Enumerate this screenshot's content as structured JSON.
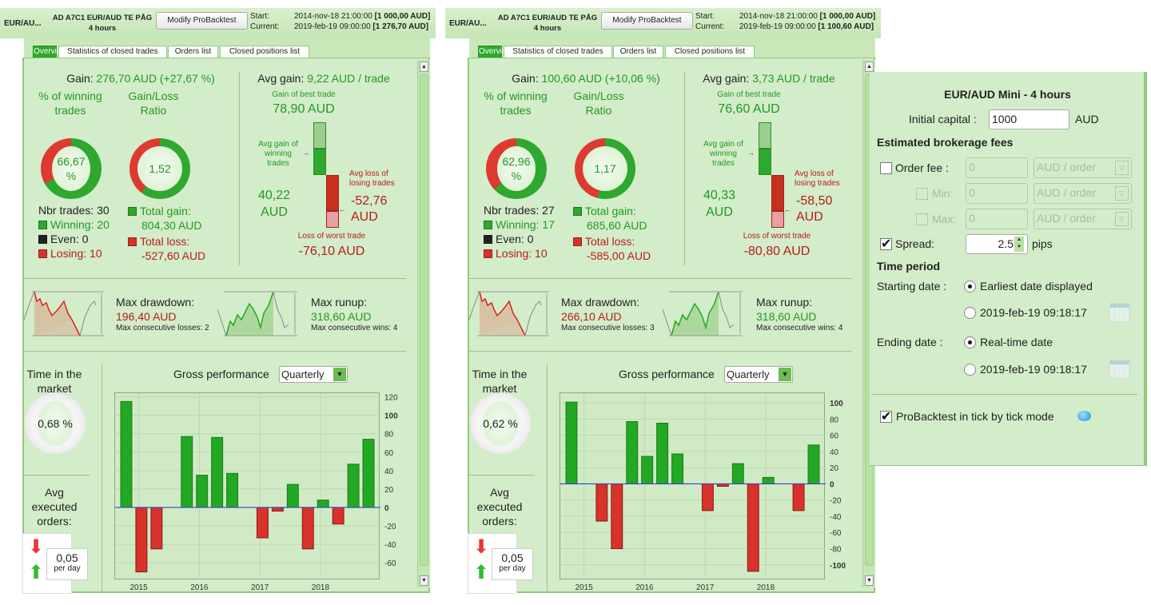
{
  "panels": [
    {
      "symbol": "EUR/AU...",
      "system_name": "AD A7C1 EUR/AUD TE PÅG",
      "timeframe": "4 hours",
      "modify_button": "Modify ProBacktest",
      "start_label": "Start:",
      "start_value": "2014-nov-18 21:00:00",
      "start_capital": "[1 000,00 AUD]",
      "current_label": "Current:",
      "current_value": "2019-feb-19 09:00:00",
      "current_capital": "[1 276,70 AUD]",
      "tabs": [
        "Overview",
        "Statistics of closed trades",
        "Orders list",
        "Closed positions list"
      ],
      "gain_label": "Gain:",
      "gain_value": "276,70 AUD (+27,67 %)",
      "pct_winning_title": "% of winning trades",
      "pct_winning_value": "66,67 %",
      "pct_winning_fraction": 0.6667,
      "gain_loss_title": "Gain/Loss Ratio",
      "gain_loss_value": "1,52",
      "gain_loss_fraction": 0.604,
      "nbr_trades": "Nbr trades: 30",
      "winning": "Winning: 20",
      "even": "Even: 0",
      "losing": "Losing: 10",
      "total_gain_label": "Total gain:",
      "total_gain_value": "804,30 AUD",
      "total_loss_label": "Total loss:",
      "total_loss_value": "-527,60 AUD",
      "avg_gain_label": "Avg gain:",
      "avg_gain_value": "9,22 AUD / trade",
      "best_trade_label": "Gain of best trade",
      "best_trade_value": "78,90 AUD",
      "avg_gain_winning_label": "Avg gain of winning trades",
      "avg_gain_winning_value": "40,22 AUD",
      "avg_loss_losing_label": "Avg loss of losing trades",
      "avg_loss_losing_value": "-52,76 AUD",
      "worst_trade_label": "Loss of worst trade",
      "worst_trade_value": "-76,10 AUD",
      "max_drawdown_label": "Max drawdown:",
      "max_drawdown_value": "196,40 AUD",
      "max_consec_losses": "Max consecutive losses: 2",
      "max_runup_label": "Max runup:",
      "max_runup_value": "318,60 AUD",
      "max_consec_wins": "Max consecutive wins: 4",
      "time_in_market_label": "Time in the market",
      "time_in_market_value": "0,68 %",
      "avg_orders_label": "Avg executed orders:",
      "avg_orders_value": "0,05",
      "avg_orders_unit": "per day",
      "gross_perf_label": "Gross performance",
      "period_select": "Quarterly"
    },
    {
      "symbol": "EUR/AU...",
      "system_name": "AD A7C1 EUR/AUD TE PÅG",
      "timeframe": "4 hours",
      "modify_button": "Modify ProBacktest",
      "start_label": "Start:",
      "start_value": "2014-nov-18 21:00:00",
      "start_capital": "[1 000,00 AUD]",
      "current_label": "Current:",
      "current_value": "2019-feb-19 09:00:00",
      "current_capital": "[1 100,60 AUD]",
      "tabs": [
        "Overview",
        "Statistics of closed trades",
        "Orders list",
        "Closed positions list"
      ],
      "gain_label": "Gain:",
      "gain_value": "100,60 AUD (+10,06 %)",
      "pct_winning_title": "% of winning trades",
      "pct_winning_value": "62,96 %",
      "pct_winning_fraction": 0.6296,
      "gain_loss_title": "Gain/Loss Ratio",
      "gain_loss_value": "1,17",
      "gain_loss_fraction": 0.54,
      "nbr_trades": "Nbr trades: 27",
      "winning": "Winning: 17",
      "even": "Even: 0",
      "losing": "Losing: 10",
      "total_gain_label": "Total gain:",
      "total_gain_value": "685,60 AUD",
      "total_loss_label": "Total loss:",
      "total_loss_value": "-585,00 AUD",
      "avg_gain_label": "Avg gain:",
      "avg_gain_value": "3,73 AUD / trade",
      "best_trade_label": "Gain of best trade",
      "best_trade_value": "76,60 AUD",
      "avg_gain_winning_label": "Avg gain of winning trades",
      "avg_gain_winning_value": "40,33 AUD",
      "avg_loss_losing_label": "Avg loss of losing trades",
      "avg_loss_losing_value": "-58,50 AUD",
      "worst_trade_label": "Loss of worst trade",
      "worst_trade_value": "-80,80 AUD",
      "max_drawdown_label": "Max drawdown:",
      "max_drawdown_value": "266,10 AUD",
      "max_consec_losses": "Max consecutive losses: 3",
      "max_runup_label": "Max runup:",
      "max_runup_value": "318,60 AUD",
      "max_consec_wins": "Max consecutive wins: 4",
      "time_in_market_label": "Time in the market",
      "time_in_market_value": "0,62 %",
      "avg_orders_label": "Avg executed orders:",
      "avg_orders_value": "0,05",
      "avg_orders_unit": "per day",
      "gross_perf_label": "Gross performance",
      "period_select": "Quarterly"
    }
  ],
  "chart_data": [
    {
      "type": "bar",
      "title": "Gross performance",
      "x_tick_labels": [
        "2015",
        "2016",
        "2017",
        "2018"
      ],
      "x_tick_positions": [
        1.3,
        5.3,
        9.3,
        13.3
      ],
      "values": [
        115,
        -70,
        -45,
        0,
        77,
        35,
        76,
        37,
        0,
        -33,
        -4,
        25,
        -45,
        8,
        -18,
        47,
        74
      ],
      "y_ticks": [
        120,
        100,
        80,
        60,
        40,
        20,
        0,
        -20,
        -40,
        -60
      ],
      "ylim": [
        -79,
        124
      ],
      "colors": {
        "positive": "#22a822",
        "negative": "#d8322a",
        "zero_line": "#3344cc"
      }
    },
    {
      "type": "bar",
      "title": "Gross performance",
      "x_tick_labels": [
        "2015",
        "2016",
        "2017",
        "2018"
      ],
      "x_tick_positions": [
        1.3,
        5.3,
        9.3,
        13.3
      ],
      "values": [
        101,
        0,
        -46,
        -80,
        77,
        34,
        75,
        37,
        0,
        -33,
        -3,
        25,
        -108,
        8,
        0,
        -33,
        48
      ],
      "y_ticks": [
        100,
        80,
        60,
        40,
        20,
        0,
        -20,
        -40,
        -60,
        -80,
        -100
      ],
      "ylim": [
        -119,
        112
      ],
      "colors": {
        "positive": "#22a822",
        "negative": "#d8322a",
        "zero_line": "#3344cc"
      }
    }
  ],
  "settings": {
    "title": "EUR/AUD Mini - 4 hours",
    "initial_capital_label": "Initial capital :",
    "initial_capital_value": "1000",
    "initial_capital_unit": "AUD",
    "fees_heading": "Estimated brokerage fees",
    "order_fee_label": "Order fee :",
    "order_fee_value": "0",
    "order_fee_unit": "AUD / order",
    "min_label": "Min:",
    "min_value": "0",
    "min_unit": "AUD / order",
    "max_label": "Max:",
    "max_value": "0",
    "max_unit": "AUD / order",
    "spread_label": "Spread:",
    "spread_value": "2.5",
    "spread_unit": "pips",
    "time_period_heading": "Time period",
    "starting_date_label": "Starting date :",
    "start_option_earliest": "Earliest date displayed",
    "start_option_date": "2019-feb-19 09:18:17",
    "ending_date_label": "Ending date :",
    "end_option_realtime": "Real-time date",
    "end_option_date": "2019-feb-19 09:18:17",
    "tick_mode_label": "ProBacktest in tick by tick mode"
  }
}
